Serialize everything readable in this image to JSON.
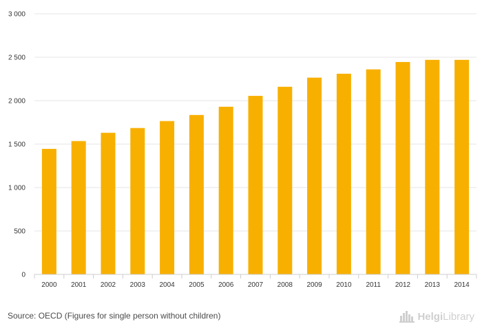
{
  "chart_data": {
    "type": "bar",
    "title": "",
    "xlabel": "",
    "ylabel": "",
    "categories": [
      "2000",
      "2001",
      "2002",
      "2003",
      "2004",
      "2005",
      "2006",
      "2007",
      "2008",
      "2009",
      "2010",
      "2011",
      "2012",
      "2013",
      "2014"
    ],
    "values": [
      1445,
      1535,
      1630,
      1685,
      1765,
      1835,
      1930,
      2055,
      2160,
      2265,
      2310,
      2360,
      2445,
      2470,
      2470
    ],
    "ylim": [
      0,
      3000
    ],
    "yticks": [
      0,
      500,
      1000,
      1500,
      2000,
      2500,
      3000
    ],
    "ytick_labels": [
      "0",
      "500",
      "1 000",
      "1 500",
      "2 000",
      "2 500",
      "3 000"
    ],
    "grid": true,
    "bar_color": "#f8b000"
  },
  "footer": {
    "source": "Source: OECD (Figures for single person without children)",
    "brand_prefix": "Helgi",
    "brand_suffix": "Library"
  },
  "icons": {
    "brand": "city-skyline-icon"
  }
}
